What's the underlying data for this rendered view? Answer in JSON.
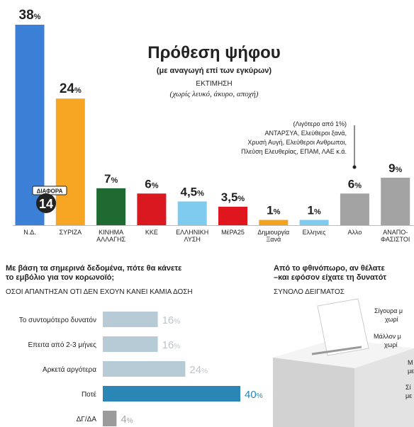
{
  "chart_data": [
    {
      "type": "bar",
      "title": "Πρόθεση ψήφου",
      "subtitle": "(με αναγωγή επί των εγκύρων)",
      "note": "ΕΚΤΙΜΗΣΗ",
      "note2": "(χωρίς λευκό, άκυρο, αποχή)",
      "annotation": [
        "(Λιγότερο από 1%)",
        "ΑΝΤΑΡΣΥΑ, Ελεύθεροι ξανά,",
        "Χρυσή Αυγή, Ελεύθεροι Ανθρωποι,",
        "Πλεύση Ελευθερίας, ΕΠΑΜ, ΛΑΕ κ.ά."
      ],
      "badge": {
        "label": "ΔΙΑΦΟΡΑ",
        "value": 14
      },
      "categories": [
        "Ν.Δ.",
        "ΣΥΡΙΖΑ",
        "ΚΙΝΗΜΑ\nΑΛΛΑΓΗΣ",
        "ΚΚΕ",
        "ΕΛΛΗΝΙΚΗ\nΛΥΣΗ",
        "ΜέΡΑ25",
        "Δημιουργία\nΞανά",
        "Ελληνες",
        "Αλλο",
        "ΑΝΑΠΟ-\nΦΑΣΙΣΤΟΙ"
      ],
      "values": [
        38,
        24,
        7,
        6,
        4.5,
        3.5,
        1,
        1,
        6,
        9
      ],
      "value_labels": [
        "38%",
        "24%",
        "7%",
        "6%",
        "4,5%",
        "3,5%",
        "1%",
        "1%",
        "6%",
        "9%"
      ],
      "colors": [
        "#3b80d6",
        "#f6a623",
        "#1e6a30",
        "#d9181f",
        "#7ecbef",
        "#df161d",
        "#f4a21d",
        "#7ecbef",
        "#a3a3a3",
        "#a3a3a3"
      ]
    },
    {
      "type": "hbar",
      "title": "Με βάση τα σημερινά δεδομένα, πότε θα κάνετε\nτο εμβόλιο για τον κορωνοϊό;",
      "subtitle": "ΟΣΟΙ ΑΠΑΝΤΗΣΑΝ ΟΤΙ ΔΕΝ ΕΧΟΥΝ ΚΑΝΕΙ ΚΑΜΙΑ ΔΟΣΗ",
      "categories": [
        "Το συντομότερο δυνατόν",
        "Επειτα από 2-3 μήνες",
        "Αρκετά αργότερα",
        "Ποτέ",
        "ΔΓ/ΔΑ"
      ],
      "values": [
        16,
        16,
        24,
        40,
        4
      ],
      "value_labels": [
        "16%",
        "16%",
        "24%",
        "40%",
        "4%"
      ],
      "colors": [
        "#b7cbd7",
        "#b7cbd7",
        "#b7cbd7",
        "#2a86b4",
        "#9b9b9b"
      ],
      "label_colors": [
        "#bcc6cc",
        "#bcc6cc",
        "#bcc6cc",
        "#2a86b4",
        "#a8a8a8"
      ]
    }
  ],
  "ballot_panel": {
    "title": "Από το φθινόπωρο, αν θέλατε\n–και εφόσον είχατε τη δυνατότ",
    "subtitle": "ΣΥΝΟΛΟ ΔΕΙΓΜΑΤΟΣ",
    "labels": [
      "Σίγουρα μ\n      χωρί",
      "Μάλλον μ\n      χωρί",
      "Μ\nμε",
      "Σί\nμε"
    ]
  }
}
